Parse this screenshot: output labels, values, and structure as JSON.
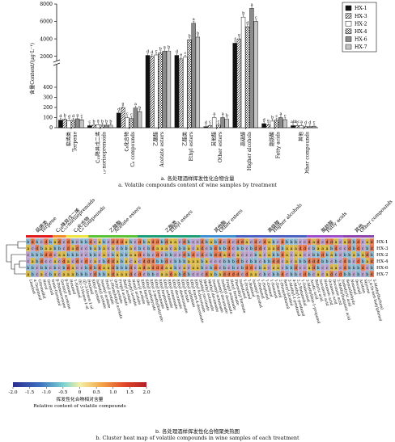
{
  "chart_data": [
    {
      "type": "bar",
      "ylabel": "含量Content/(μg·L⁻¹)",
      "y_ticks_lower": [
        "0",
        "100",
        "200",
        "300",
        "400"
      ],
      "y_ticks_upper": [
        "2000",
        "4000",
        "6000",
        "8000"
      ],
      "categories": [
        {
          "zh": "萜烯类",
          "en": "Terpene"
        },
        {
          "zh": "C₁₃降异戊二烯",
          "en": "C₁₃-norisoprenoids"
        },
        {
          "zh": "C₆化合物",
          "en": "C₆ compounds"
        },
        {
          "zh": "乙酸酯",
          "en": "Acetate esters"
        },
        {
          "zh": "乙酯类",
          "en": "Ethyl esters"
        },
        {
          "zh": "其他酯",
          "en": "Other esters"
        },
        {
          "zh": "高级醇",
          "en": "Higher alcohols"
        },
        {
          "zh": "脂肪酸",
          "en": "Fatty acids"
        },
        {
          "zh": "其他",
          "en": "Other compounds"
        }
      ],
      "series": [
        {
          "name": "HX-1",
          "values": [
            75,
            20,
            145,
            2100,
            2100,
            10,
            3500,
            40,
            20
          ],
          "letters": [
            "d",
            "c",
            "d",
            "d",
            "d",
            "d",
            "f",
            "d",
            "ab"
          ]
        },
        {
          "name": "HX-3",
          "values": [
            85,
            25,
            200,
            2000,
            1700,
            20,
            4000,
            30,
            20
          ],
          "letters": [
            "b",
            "b",
            "a",
            "d",
            "e",
            "c",
            "e",
            "e",
            "bc"
          ]
        },
        {
          "name": "HX-2",
          "values": [
            70,
            30,
            100,
            2150,
            1900,
            100,
            6500,
            65,
            20
          ],
          "letters": [
            "d",
            "a",
            "c",
            "c",
            "c",
            "a",
            "b",
            "b",
            "a"
          ]
        },
        {
          "name": "HX-4",
          "values": [
            75,
            25,
            90,
            2400,
            3900,
            25,
            5400,
            75,
            10
          ],
          "letters": [
            "d",
            "b",
            "c",
            "b",
            "b",
            "c",
            "d",
            "c",
            "d"
          ]
        },
        {
          "name": "HX-6",
          "values": [
            88,
            25,
            195,
            2600,
            5800,
            100,
            7500,
            100,
            10
          ],
          "letters": [
            "a",
            "b",
            "a",
            "a",
            "a",
            "a",
            "a",
            "a",
            "d"
          ]
        },
        {
          "name": "HX-7",
          "values": [
            78,
            25,
            160,
            2600,
            4200,
            85,
            6000,
            80,
            15
          ],
          "letters": [
            "c",
            "b",
            "b",
            "b",
            "b",
            "b",
            "c",
            "c",
            "c"
          ]
        }
      ],
      "caption_zh": "a. 各处理酒样挥发性化合物含量",
      "caption_en": "a. Volatile compounds content of wine samples by treatment"
    },
    {
      "type": "heatmap",
      "rows": [
        "HX-1",
        "HX-3",
        "HX-2",
        "HX-4",
        "HX-6",
        "HX-7"
      ],
      "groups": [
        {
          "zh": "萜烯类",
          "en": "Terpene",
          "color": "#e31a1c",
          "n": 6
        },
        {
          "zh": "C₁₃降异戊二烯",
          "en": "C₁₃-norisoprenoids",
          "color": "#f28c28",
          "n": 3
        },
        {
          "zh": "C₆化合物",
          "en": "C₆ compounds",
          "color": "#f0e442",
          "n": 5
        },
        {
          "zh": "乙酸酯",
          "en": "Acetate esters",
          "color": "#5bc236",
          "n": 11
        },
        {
          "zh": "乙酯类",
          "en": "Ethyl esters",
          "color": "#1b9e77",
          "n": 14
        },
        {
          "zh": "其他酯",
          "en": "Other esters",
          "color": "#3d8fd1",
          "n": 8
        },
        {
          "zh": "高级醇",
          "en": "Higher alcohols",
          "color": "#4a5fc1",
          "n": 16
        },
        {
          "zh": "脂肪酸",
          "en": "Fatty acids",
          "color": "#9b4dca",
          "n": 8
        },
        {
          "zh": "其他",
          "en": "Other compounds",
          "color": "#8e44ad",
          "n": 7
        }
      ],
      "compounds": [
        "Linalool",
        "α-Terpineol",
        "Citronellol",
        "Nerol",
        "Geraniol",
        "trans-Geraniol",
        "β-Damascenone",
        "Geranyl acetone",
        "β-Ionone",
        "Hexanol",
        "1-Hexanol",
        "(E)-3-Hexen-1-ol",
        "(Z)-3-Hexen-1-ol",
        "Hexanal",
        "Ethyl acetate",
        "Isobutyl acetate",
        "Isoamyl acetate",
        "Hexyl acetate",
        "2-Phenylethyl acetate",
        "Octyl acetate",
        "Propyl acetate",
        "Butyl acetate",
        "Heptyl acetate",
        "Nonyl acetate",
        "Decyl acetate",
        "Ethyl butyrate",
        "Ethyl isobutyrate",
        "Ethyl 2-methylbutyrate",
        "Ethyl hexanoate",
        "Ethyl heptanoate",
        "Ethyl octanoate",
        "Ethyl nonanoate",
        "Ethyl decanoate",
        "Ethyl dodecanoate",
        "Ethyl lactate",
        "Ethyl palmitate",
        "Ethyl trans-4-decenoate",
        "Ethyl 9-decenoate",
        "Diethyl succinate",
        "Methyl octanoate",
        "Methyl decanoate",
        "Isoamyl octanoate",
        "Isoamyl decanoate",
        "Isobutyl decanoate",
        "Propyl octanoate",
        "Hexyl formate",
        "Phenethyl formate",
        "Isobutanol",
        "1-Propanol",
        "1-Butanol",
        "Isoamyl alcohol",
        "1-Pentanol",
        "1-Heptanol",
        "1-Octanol",
        "1-Nonanol",
        "1-Decanol",
        "2-Phenylethanol",
        "Benzyl alcohol",
        "3-Methyl-1-pentanol",
        "4-Methyl-1-pentanol",
        "2,3-Butanediol",
        "1-Dodecanol",
        "3-Methylthio-1-propanol",
        "Acetic acid",
        "Butyric acid",
        "Isovaleric acid",
        "Hexanoic acid",
        "Octanoic acid",
        "Decanoic acid",
        "2-Methylbutanoic acid",
        "Isobutyric acid",
        "Benzaldehyde",
        "Nonanal",
        "Decanal",
        "Acetoin",
        "Styrene",
        "2,4-Di-tert-butylphenol",
        "5-Methylfurfural"
      ],
      "cells": [
        "bdbcdbadcdbcbbdcabcdddabcdbaddbdaacdbccdbabdcdcddacdcdabcdbbbccdadcddacadbdcadd",
        "acdbaabbcdadccbabacacbbacbcbdaaacabbacadcbdbbdcbbcbddcaadbaaaddcbaaabdccdbdcbdd",
        "cbbbddcaabbbccbbcacbabbaadcbcdcbbccdbdcdcbddadcacccbacabbdacaaccbbdbabcbbabadba",
        "cabdccacdacdcdcacbddabacacdddbbdcbbbaaabacccbbbdbcbbcbbddcacabbdddbbcbcdbcdbadd",
        "bbcbbcbcbdaccbdbdaadbbbdcadadddaabcacaabcbdcbcbcbddcbacaacbbdccadbccaacdbbbdcba",
        "abcacbacaaabbbcdbbadaaadcdcbbcaadabdbcccdabaddddcdaacbcbbdcbbcdbcacadcdbbcbcbdb"
      ],
      "colorbar": {
        "ticks": [
          "-2.0",
          "-1.5",
          "-1.0",
          "-0.5",
          "0",
          "0.5",
          "1.0",
          "1.5",
          "2.0"
        ],
        "label_zh": "挥发性化合物相对含量",
        "label_en": "Relative content of volatile compounds"
      },
      "caption_zh": "b. 各处理酒样挥发性化合物聚类热图",
      "caption_en": "b. Cluster heat map of volatile compounds in wine samples of each treatment"
    }
  ]
}
